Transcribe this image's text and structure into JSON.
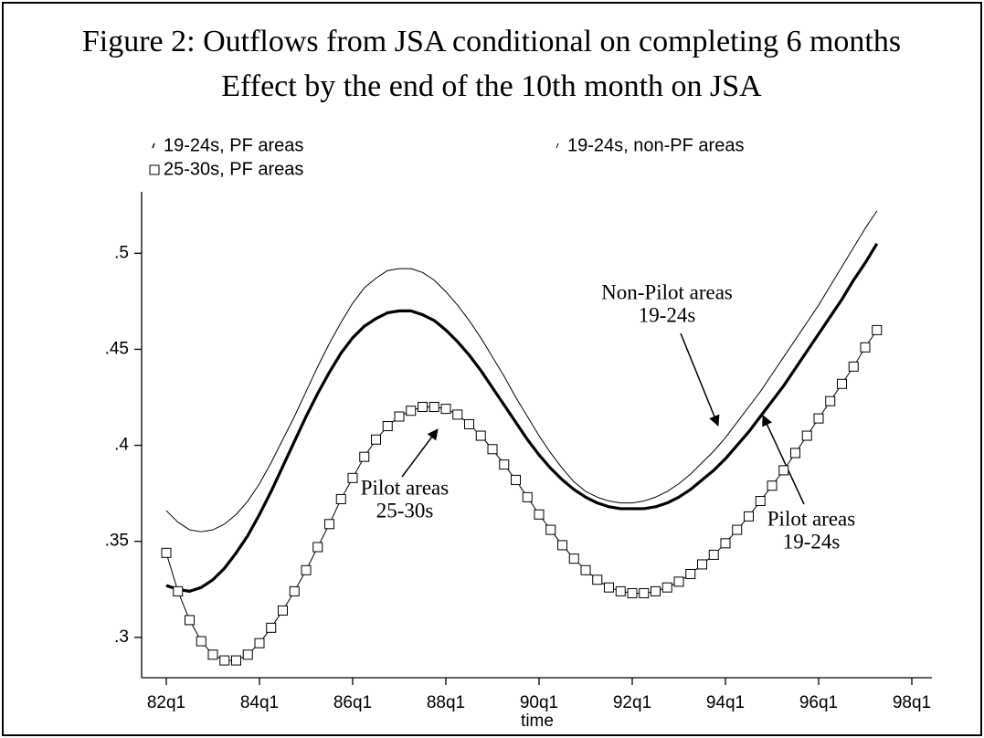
{
  "chart_data": {
    "type": "line",
    "title": "Figure 2: Outflows from JSA conditional on completing 6 months",
    "subtitle": "Effect by the end of the 10th month on JSA",
    "x_label": "time",
    "x": [
      "82q1",
      "82q2",
      "82q3",
      "82q4",
      "83q1",
      "83q2",
      "83q3",
      "83q4",
      "84q1",
      "84q2",
      "84q3",
      "84q4",
      "85q1",
      "85q2",
      "85q3",
      "85q4",
      "86q1",
      "86q2",
      "86q3",
      "86q4",
      "87q1",
      "87q2",
      "87q3",
      "87q4",
      "88q1",
      "88q2",
      "88q3",
      "88q4",
      "89q1",
      "89q2",
      "89q3",
      "89q4",
      "90q1",
      "90q2",
      "90q3",
      "90q4",
      "91q1",
      "91q2",
      "91q3",
      "91q4",
      "92q1",
      "92q2",
      "92q3",
      "92q4",
      "93q1",
      "93q2",
      "93q3",
      "93q4",
      "94q1",
      "94q2",
      "94q3",
      "94q4",
      "95q1",
      "95q2",
      "95q3",
      "95q4",
      "96q1",
      "96q2",
      "96q3",
      "96q4",
      "97q1",
      "97q2",
      "97q3",
      "97q4",
      "98q1"
    ],
    "xticks": [
      0,
      8,
      16,
      24,
      32,
      40,
      48,
      56,
      64
    ],
    "ylim": [
      0.279,
      0.532
    ],
    "yticks": [
      {
        "value": 0.3,
        "label": ".3"
      },
      {
        "value": 0.35,
        "label": ".35"
      },
      {
        "value": 0.4,
        "label": ".4"
      },
      {
        "value": 0.45,
        "label": ".45"
      },
      {
        "value": 0.5,
        "label": ".5"
      }
    ],
    "series": [
      {
        "name": "19-24s, PF areas",
        "color": "#000000",
        "line_width": 3.2,
        "marker": null,
        "values": [
          0.327,
          0.325,
          0.324,
          0.326,
          0.33,
          0.336,
          0.344,
          0.353,
          0.364,
          0.376,
          0.389,
          0.402,
          0.415,
          0.427,
          0.438,
          0.448,
          0.456,
          0.462,
          0.466,
          0.469,
          0.47,
          0.47,
          0.468,
          0.465,
          0.46,
          0.454,
          0.447,
          0.439,
          0.43,
          0.421,
          0.412,
          0.403,
          0.395,
          0.388,
          0.382,
          0.377,
          0.373,
          0.37,
          0.368,
          0.367,
          0.367,
          0.367,
          0.368,
          0.37,
          0.373,
          0.377,
          0.382,
          0.387,
          0.393,
          0.4,
          0.407,
          0.415,
          0.423,
          0.431,
          0.44,
          0.449,
          0.458,
          0.467,
          0.476,
          0.486,
          0.495,
          0.505,
          null,
          null,
          null
        ]
      },
      {
        "name": "19-24s, non-PF areas",
        "color": "#000000",
        "line_width": 1,
        "marker": null,
        "values": [
          0.366,
          0.36,
          0.356,
          0.355,
          0.356,
          0.359,
          0.364,
          0.371,
          0.38,
          0.391,
          0.403,
          0.415,
          0.428,
          0.441,
          0.453,
          0.464,
          0.474,
          0.482,
          0.487,
          0.491,
          0.492,
          0.492,
          0.49,
          0.486,
          0.48,
          0.473,
          0.465,
          0.456,
          0.446,
          0.436,
          0.425,
          0.415,
          0.405,
          0.396,
          0.388,
          0.381,
          0.376,
          0.373,
          0.371,
          0.37,
          0.37,
          0.371,
          0.373,
          0.376,
          0.38,
          0.385,
          0.391,
          0.397,
          0.404,
          0.412,
          0.42,
          0.428,
          0.437,
          0.446,
          0.455,
          0.464,
          0.473,
          0.483,
          0.493,
          0.503,
          0.513,
          0.522,
          null,
          null,
          null
        ]
      },
      {
        "name": "25-30s, PF areas",
        "color": "#000000",
        "line_width": 1,
        "marker": "square",
        "values": [
          0.344,
          0.324,
          0.309,
          0.298,
          0.291,
          0.288,
          0.288,
          0.291,
          0.297,
          0.305,
          0.314,
          0.324,
          0.335,
          0.347,
          0.359,
          0.372,
          0.383,
          0.394,
          0.403,
          0.41,
          0.415,
          0.418,
          0.42,
          0.42,
          0.419,
          0.416,
          0.411,
          0.405,
          0.398,
          0.39,
          0.382,
          0.373,
          0.364,
          0.356,
          0.348,
          0.341,
          0.335,
          0.33,
          0.326,
          0.324,
          0.323,
          0.323,
          0.324,
          0.326,
          0.329,
          0.333,
          0.338,
          0.343,
          0.349,
          0.356,
          0.363,
          0.371,
          0.379,
          0.387,
          0.396,
          0.405,
          0.414,
          0.423,
          0.432,
          0.441,
          0.451,
          0.46,
          null,
          null,
          null
        ]
      }
    ],
    "annotations": [
      {
        "lines": [
          "Non-Pilot areas",
          "19-24s"
        ]
      },
      {
        "lines": [
          "Pilot areas",
          "25-30s"
        ]
      },
      {
        "lines": [
          "Pilot areas",
          "19-24s"
        ]
      }
    ]
  }
}
